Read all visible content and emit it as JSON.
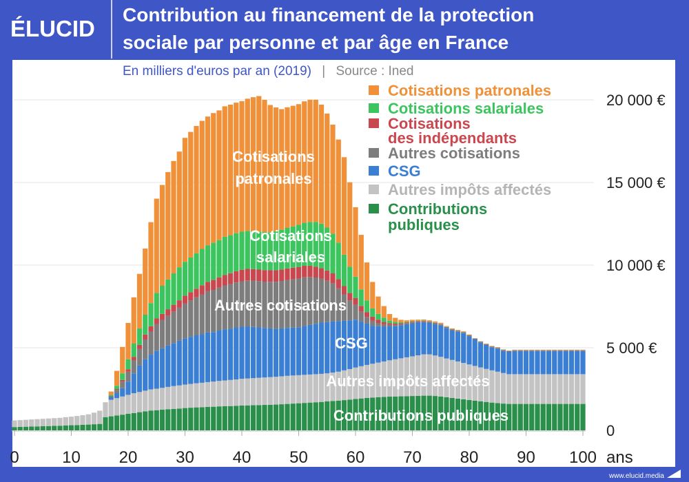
{
  "header": {
    "logo": "ÉLUCID",
    "title_line1": "Contribution au financement de la protection",
    "title_line2": "sociale par personne et par âge en France",
    "subtitle": "En milliers d'euros par an (2019)",
    "separator": "|",
    "source": "Source : Ined"
  },
  "footer": {
    "website": "www.elucid.media"
  },
  "colors": {
    "frame": "#3f56c6"
  },
  "chart_data": {
    "type": "bar",
    "stacked": true,
    "xlabel": "ans",
    "x_start": 0,
    "x_end": 100,
    "xticks": [
      "0",
      "10",
      "20",
      "30",
      "40",
      "50",
      "60",
      "70",
      "80",
      "90",
      "100"
    ],
    "ylim": [
      0,
      20000
    ],
    "yticks": [
      {
        "value": 0,
        "label": "0"
      },
      {
        "value": 5000,
        "label": "5 000 €"
      },
      {
        "value": 10000,
        "label": "10 000 €"
      },
      {
        "value": 15000,
        "label": "15 000 €"
      },
      {
        "value": 20000,
        "label": "20 000 €"
      }
    ],
    "grid": true,
    "legend_placement": "top-right",
    "series": [
      {
        "name": "Contributions publiques",
        "legend": [
          "Contributions",
          "publiques"
        ],
        "inner_label": [
          "Contributions publiques"
        ],
        "color": "#2a8f4a",
        "values": [
          200,
          210,
          220,
          230,
          240,
          250,
          260,
          270,
          280,
          300,
          310,
          320,
          340,
          350,
          370,
          390,
          800,
          850,
          900,
          950,
          1000,
          1050,
          1100,
          1150,
          1200,
          1220,
          1250,
          1280,
          1300,
          1320,
          1350,
          1370,
          1390,
          1400,
          1420,
          1430,
          1450,
          1460,
          1470,
          1480,
          1500,
          1510,
          1520,
          1530,
          1540,
          1550,
          1560,
          1580,
          1600,
          1620,
          1640,
          1660,
          1680,
          1700,
          1720,
          1750,
          1780,
          1800,
          1830,
          1860,
          1900,
          1930,
          1960,
          1980,
          2000,
          2020,
          2040,
          2050,
          2060,
          2070,
          2080,
          2090,
          2100,
          2100,
          2080,
          2050,
          2000,
          1960,
          1920,
          1880,
          1840,
          1800,
          1760,
          1720,
          1680,
          1650,
          1620,
          1600,
          1600,
          1600,
          1600,
          1600,
          1600,
          1600,
          1600,
          1600,
          1600,
          1600,
          1600,
          1600,
          1600
        ]
      },
      {
        "name": "Autres impôts affectés",
        "legend": [
          "Autres impôts affectés"
        ],
        "inner_label": [
          "Autres impôts affectés"
        ],
        "color": "#c3c3c3",
        "values": [
          400,
          410,
          420,
          430,
          440,
          450,
          460,
          470,
          480,
          500,
          520,
          550,
          580,
          620,
          700,
          800,
          900,
          1000,
          1050,
          1100,
          1150,
          1200,
          1220,
          1250,
          1280,
          1300,
          1320,
          1350,
          1380,
          1400,
          1420,
          1440,
          1460,
          1480,
          1500,
          1520,
          1540,
          1560,
          1580,
          1600,
          1620,
          1630,
          1640,
          1650,
          1660,
          1670,
          1680,
          1690,
          1700,
          1700,
          1700,
          1700,
          1700,
          1700,
          1700,
          1700,
          1720,
          1750,
          1800,
          1850,
          1900,
          1950,
          2000,
          2050,
          2100,
          2150,
          2200,
          2250,
          2300,
          2350,
          2400,
          2450,
          2500,
          2500,
          2450,
          2400,
          2350,
          2300,
          2250,
          2200,
          2150,
          2100,
          2050,
          2000,
          1950,
          1900,
          1850,
          1800,
          1800,
          1800,
          1800,
          1800,
          1800,
          1800,
          1800,
          1800,
          1800,
          1800,
          1800,
          1800,
          1800
        ]
      },
      {
        "name": "CSG",
        "legend": [
          "CSG"
        ],
        "inner_label": [
          "CSG"
        ],
        "color": "#3b7fd4",
        "values": [
          0,
          0,
          0,
          0,
          0,
          0,
          0,
          0,
          0,
          0,
          0,
          0,
          0,
          0,
          0,
          0,
          0,
          150,
          300,
          500,
          800,
          1200,
          1600,
          1900,
          2100,
          2300,
          2400,
          2500,
          2600,
          2700,
          2800,
          2850,
          2900,
          2950,
          3000,
          3000,
          3050,
          3100,
          3100,
          3150,
          3150,
          3150,
          3100,
          3050,
          3000,
          2950,
          2900,
          2900,
          2900,
          2900,
          2900,
          2950,
          3000,
          3050,
          3100,
          3100,
          3100,
          3050,
          3000,
          2950,
          2900,
          2700,
          2500,
          2300,
          2200,
          2100,
          2050,
          2000,
          2000,
          2000,
          2000,
          2000,
          1950,
          1900,
          1900,
          1900,
          1850,
          1800,
          1800,
          1800,
          1700,
          1600,
          1500,
          1450,
          1400,
          1400,
          1350,
          1350,
          1400,
          1400,
          1400,
          1400,
          1400,
          1400,
          1400,
          1400,
          1400,
          1400,
          1400,
          1400,
          1400
        ]
      },
      {
        "name": "Autres cotisations",
        "legend": [
          "Autres cotisations"
        ],
        "inner_label": [
          "Autres cotisations"
        ],
        "color": "#7d7d7d",
        "values": [
          0,
          0,
          0,
          0,
          0,
          0,
          0,
          0,
          0,
          0,
          0,
          0,
          0,
          0,
          0,
          0,
          0,
          100,
          200,
          400,
          600,
          800,
          1000,
          1200,
          1400,
          1600,
          1700,
          1800,
          1900,
          2000,
          2100,
          2200,
          2300,
          2400,
          2500,
          2550,
          2600,
          2650,
          2700,
          2720,
          2750,
          2780,
          2800,
          2800,
          2800,
          2820,
          2850,
          2870,
          2900,
          2920,
          2950,
          2950,
          2900,
          2800,
          2650,
          2500,
          2300,
          2000,
          1600,
          1200,
          900,
          600,
          400,
          300,
          200,
          150,
          100,
          80,
          60,
          50,
          50,
          50,
          50,
          50,
          50,
          50,
          30,
          30,
          30,
          30,
          30,
          20,
          20,
          20,
          20,
          20,
          20,
          20,
          20,
          20,
          20,
          20,
          20,
          20,
          20,
          20,
          20,
          20,
          20,
          20,
          20
        ]
      },
      {
        "name": "Cotisations des indépendants",
        "legend": [
          "Cotisations",
          "des indépendants"
        ],
        "inner_label": [],
        "color": "#c9474e",
        "values": [
          0,
          0,
          0,
          0,
          0,
          0,
          0,
          0,
          0,
          0,
          0,
          0,
          0,
          0,
          0,
          0,
          0,
          0,
          50,
          100,
          150,
          200,
          250,
          300,
          320,
          350,
          380,
          400,
          420,
          450,
          480,
          500,
          520,
          550,
          570,
          600,
          620,
          640,
          660,
          680,
          700,
          700,
          700,
          700,
          700,
          700,
          700,
          700,
          700,
          700,
          700,
          700,
          680,
          660,
          640,
          620,
          600,
          550,
          500,
          450,
          400,
          350,
          300,
          250,
          200,
          150,
          100,
          80,
          60,
          50,
          50,
          30,
          30,
          30,
          30,
          30,
          30,
          30,
          30,
          30,
          30,
          30,
          30,
          30,
          30,
          30,
          30,
          30,
          30,
          30,
          30,
          30,
          30,
          30,
          30,
          30,
          30,
          30,
          30,
          30,
          30
        ]
      },
      {
        "name": "Cotisations salariales",
        "legend": [
          "Cotisations salariales"
        ],
        "inner_label": [
          "Cotisations",
          "salariales"
        ],
        "color": "#3cc55e",
        "values": [
          0,
          0,
          0,
          0,
          0,
          0,
          0,
          0,
          0,
          0,
          0,
          0,
          0,
          0,
          0,
          0,
          0,
          50,
          200,
          400,
          600,
          800,
          1000,
          1200,
          1400,
          1550,
          1700,
          1800,
          1900,
          2000,
          2050,
          2100,
          2150,
          2200,
          2200,
          2250,
          2250,
          2300,
          2300,
          2300,
          2300,
          2300,
          2300,
          2300,
          2300,
          2300,
          2350,
          2400,
          2450,
          2500,
          2550,
          2600,
          2650,
          2700,
          2700,
          2600,
          2400,
          2200,
          1900,
          1600,
          1300,
          1000,
          700,
          500,
          350,
          250,
          150,
          100,
          60,
          40,
          30,
          20,
          20,
          20,
          20,
          20,
          20,
          20,
          20,
          20,
          20,
          20,
          20,
          20,
          20,
          20,
          20,
          20,
          20,
          20,
          20,
          20,
          20,
          20,
          20,
          20,
          20,
          20,
          20,
          20,
          20
        ]
      },
      {
        "name": "Cotisations patronales",
        "legend": [
          "Cotisations patronales"
        ],
        "inner_label": [
          "Cotisations",
          "patronales"
        ],
        "color": "#f0913a",
        "values": [
          0,
          0,
          0,
          0,
          0,
          0,
          0,
          0,
          0,
          0,
          0,
          0,
          0,
          0,
          0,
          0,
          0,
          200,
          900,
          1600,
          2200,
          2800,
          3300,
          4000,
          4900,
          5700,
          6100,
          6500,
          6800,
          7000,
          7500,
          7600,
          7700,
          7750,
          7800,
          7850,
          7850,
          7900,
          7900,
          7900,
          7900,
          8000,
          8100,
          8200,
          8000,
          7700,
          7500,
          7300,
          7300,
          7300,
          7300,
          7350,
          7400,
          7400,
          7200,
          6900,
          6600,
          6250,
          5900,
          5100,
          4200,
          3300,
          2300,
          1600,
          1050,
          700,
          400,
          250,
          150,
          100,
          80,
          60,
          60,
          60,
          60,
          60,
          30,
          30,
          30,
          30,
          30,
          10,
          10,
          10,
          10,
          10,
          10,
          10,
          10,
          10,
          10,
          10,
          10,
          10,
          10,
          10,
          10,
          10,
          10,
          10,
          10
        ]
      }
    ]
  }
}
